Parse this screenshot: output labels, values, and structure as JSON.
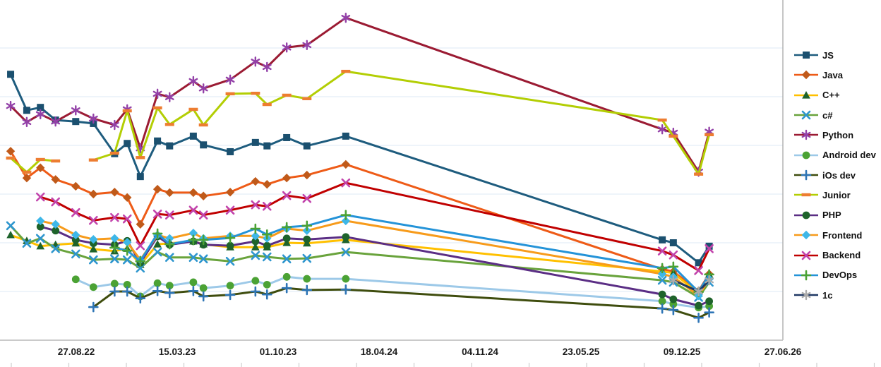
{
  "chart_data": {
    "type": "line",
    "title": "",
    "x_tick_labels": [
      "27.08.22",
      "15.03.23",
      "01.10.23",
      "18.04.24",
      "04.11.24",
      "23.05.25",
      "09.12.25",
      "27.06.26"
    ],
    "sample_dates": [
      "19.04.22",
      "21.05.22",
      "17.06.22",
      "17.07.22",
      "26.08.22",
      "30.09.22",
      "11.11.22",
      "06.12.22",
      "01.01.23",
      "04.02.23",
      "28.02.23",
      "16.04.23",
      "06.05.23",
      "28.06.23",
      "17.08.23",
      "09.09.23",
      "18.10.23",
      "27.11.23",
      "12.02.24",
      "31.10.25",
      "22.11.25",
      "11.01.26",
      "01.02.26"
    ],
    "y_axis": {
      "labels_visible": false,
      "ylim": [
        0,
        70
      ],
      "gridline_step": 10
    },
    "legend_position": "right",
    "grid": "horizontal",
    "series": [
      {
        "name": "JS",
        "marker": "square",
        "line_color": "#1E5C7E",
        "marker_color": "#1B506F",
        "values": [
          54.6,
          47.2,
          47.8,
          45.2,
          44.9,
          44.5,
          38.3,
          40.4,
          33.6,
          40.9,
          39.9,
          41.9,
          40.1,
          38.7,
          40.6,
          39.9,
          41.6,
          39.9,
          41.9,
          20.6,
          20.0,
          15.9,
          19.3
        ]
      },
      {
        "name": "Java",
        "marker": "diamond",
        "line_color": "#EE5B17",
        "marker_color": "#C05A1A",
        "values": [
          38.8,
          33.3,
          35.4,
          33.0,
          31.6,
          30.0,
          30.4,
          29.3,
          23.8,
          31.0,
          30.3,
          30.3,
          29.6,
          30.4,
          32.6,
          32.0,
          33.3,
          33.9,
          36.1,
          14.6,
          14.1,
          10.1,
          13.6
        ]
      },
      {
        "name": "C++",
        "marker": "triangle",
        "line_color": "#FFC000",
        "marker_color": "#1E632B",
        "values": [
          21.6,
          20.4,
          19.3,
          19.6,
          19.9,
          18.7,
          18.3,
          18.8,
          15.5,
          19.7,
          19.9,
          20.3,
          19.7,
          19.1,
          19.1,
          19.1,
          20.0,
          19.9,
          20.6,
          14.1,
          13.8,
          9.6,
          13.5
        ]
      },
      {
        "name": "c#",
        "marker": "x",
        "line_color": "#69A33C",
        "marker_color": "#2E96CE",
        "values": [
          23.5,
          19.9,
          20.9,
          18.8,
          17.7,
          16.5,
          16.7,
          16.5,
          14.8,
          18.1,
          17.0,
          17.0,
          16.7,
          16.2,
          17.4,
          17.1,
          16.7,
          16.8,
          18.1,
          12.3,
          11.9,
          8.8,
          11.9
        ]
      },
      {
        "name": "Python",
        "marker": "asterisk",
        "line_color": "#9B1B33",
        "marker_color": "#9341A8",
        "values": [
          48.1,
          44.8,
          46.4,
          44.9,
          47.2,
          45.5,
          44.2,
          47.4,
          39.4,
          50.6,
          49.9,
          53.2,
          51.7,
          53.5,
          57.2,
          56.1,
          60.1,
          60.6,
          66.2,
          43.3,
          42.6,
          34.6,
          42.8
        ]
      },
      {
        "name": "Android dev",
        "marker": "circle",
        "line_color": "#9DC9E8",
        "marker_color": "#4BA234",
        "values": [
          null,
          null,
          null,
          null,
          12.5,
          10.9,
          11.6,
          11.4,
          9.0,
          11.7,
          11.2,
          11.9,
          10.7,
          11.2,
          12.2,
          11.4,
          13.0,
          12.6,
          12.6,
          8.0,
          7.4,
          6.7,
          7.0
        ]
      },
      {
        "name": "iOs dev",
        "marker": "plus",
        "line_color": "#3F4D0E",
        "marker_color": "#2E75B6",
        "values": [
          null,
          null,
          null,
          null,
          null,
          6.8,
          10.0,
          10.0,
          8.6,
          10.1,
          9.7,
          10.1,
          9.0,
          9.3,
          10.0,
          9.4,
          10.7,
          10.3,
          10.4,
          6.5,
          6.2,
          4.6,
          5.7
        ]
      },
      {
        "name": "Junior",
        "marker": "dash",
        "line_color": "#B3CE04",
        "marker_color": "#ED7D31",
        "values": [
          37.4,
          34.5,
          37.1,
          36.8,
          null,
          37.0,
          38.4,
          47.1,
          37.5,
          47.7,
          44.3,
          47.4,
          44.2,
          50.6,
          50.7,
          48.4,
          50.3,
          49.6,
          55.2,
          45.2,
          41.9,
          34.1,
          42.2
        ]
      },
      {
        "name": "PHP",
        "marker": "circle",
        "line_color": "#5B2E85",
        "marker_color": "#1E632B",
        "values": [
          null,
          null,
          23.3,
          22.5,
          20.6,
          19.9,
          19.6,
          20.4,
          15.9,
          21.3,
          19.6,
          20.3,
          19.6,
          19.4,
          20.3,
          19.4,
          20.9,
          20.7,
          21.2,
          9.4,
          8.4,
          7.1,
          8.0
        ]
      },
      {
        "name": "Frontend",
        "marker": "diamond",
        "line_color": "#F79B1B",
        "marker_color": "#3EB7E8",
        "values": [
          null,
          null,
          24.5,
          23.8,
          21.6,
          20.7,
          20.9,
          20.1,
          16.5,
          21.6,
          20.9,
          22.0,
          20.9,
          21.4,
          21.4,
          20.9,
          22.9,
          22.5,
          24.5,
          13.6,
          13.0,
          9.1,
          12.6
        ]
      },
      {
        "name": "Backend",
        "marker": "x",
        "line_color": "#C00000",
        "marker_color": "#C244AC",
        "values": [
          null,
          null,
          29.4,
          28.4,
          26.2,
          24.6,
          25.2,
          24.9,
          19.4,
          25.9,
          25.7,
          26.7,
          25.7,
          26.7,
          27.8,
          27.5,
          29.7,
          29.1,
          32.3,
          18.3,
          17.5,
          14.3,
          18.8
        ]
      },
      {
        "name": "DevOps",
        "marker": "plus",
        "line_color": "#2493D8",
        "marker_color": "#4BA234",
        "values": [
          null,
          null,
          null,
          null,
          null,
          null,
          19.0,
          18.4,
          16.2,
          21.9,
          19.7,
          20.6,
          20.6,
          21.0,
          22.9,
          21.7,
          23.2,
          23.5,
          25.7,
          14.8,
          15.1,
          9.9,
          13.5
        ]
      },
      {
        "name": "1c",
        "marker": "asterisk",
        "line_color": "#1F3864",
        "marker_color": "#ABABAB",
        "values": [
          null,
          null,
          null,
          null,
          null,
          null,
          null,
          null,
          null,
          null,
          null,
          null,
          null,
          null,
          null,
          null,
          null,
          null,
          null,
          null,
          12.3,
          10.0,
          12.3
        ]
      }
    ],
    "colors": {
      "gridline": "#E4EEF7",
      "axis_line": "#C2C2C2",
      "plot_border": "#A0A0A0",
      "minor_tick": "#CFCFCF",
      "tick_text": "#1A1A1A"
    }
  }
}
